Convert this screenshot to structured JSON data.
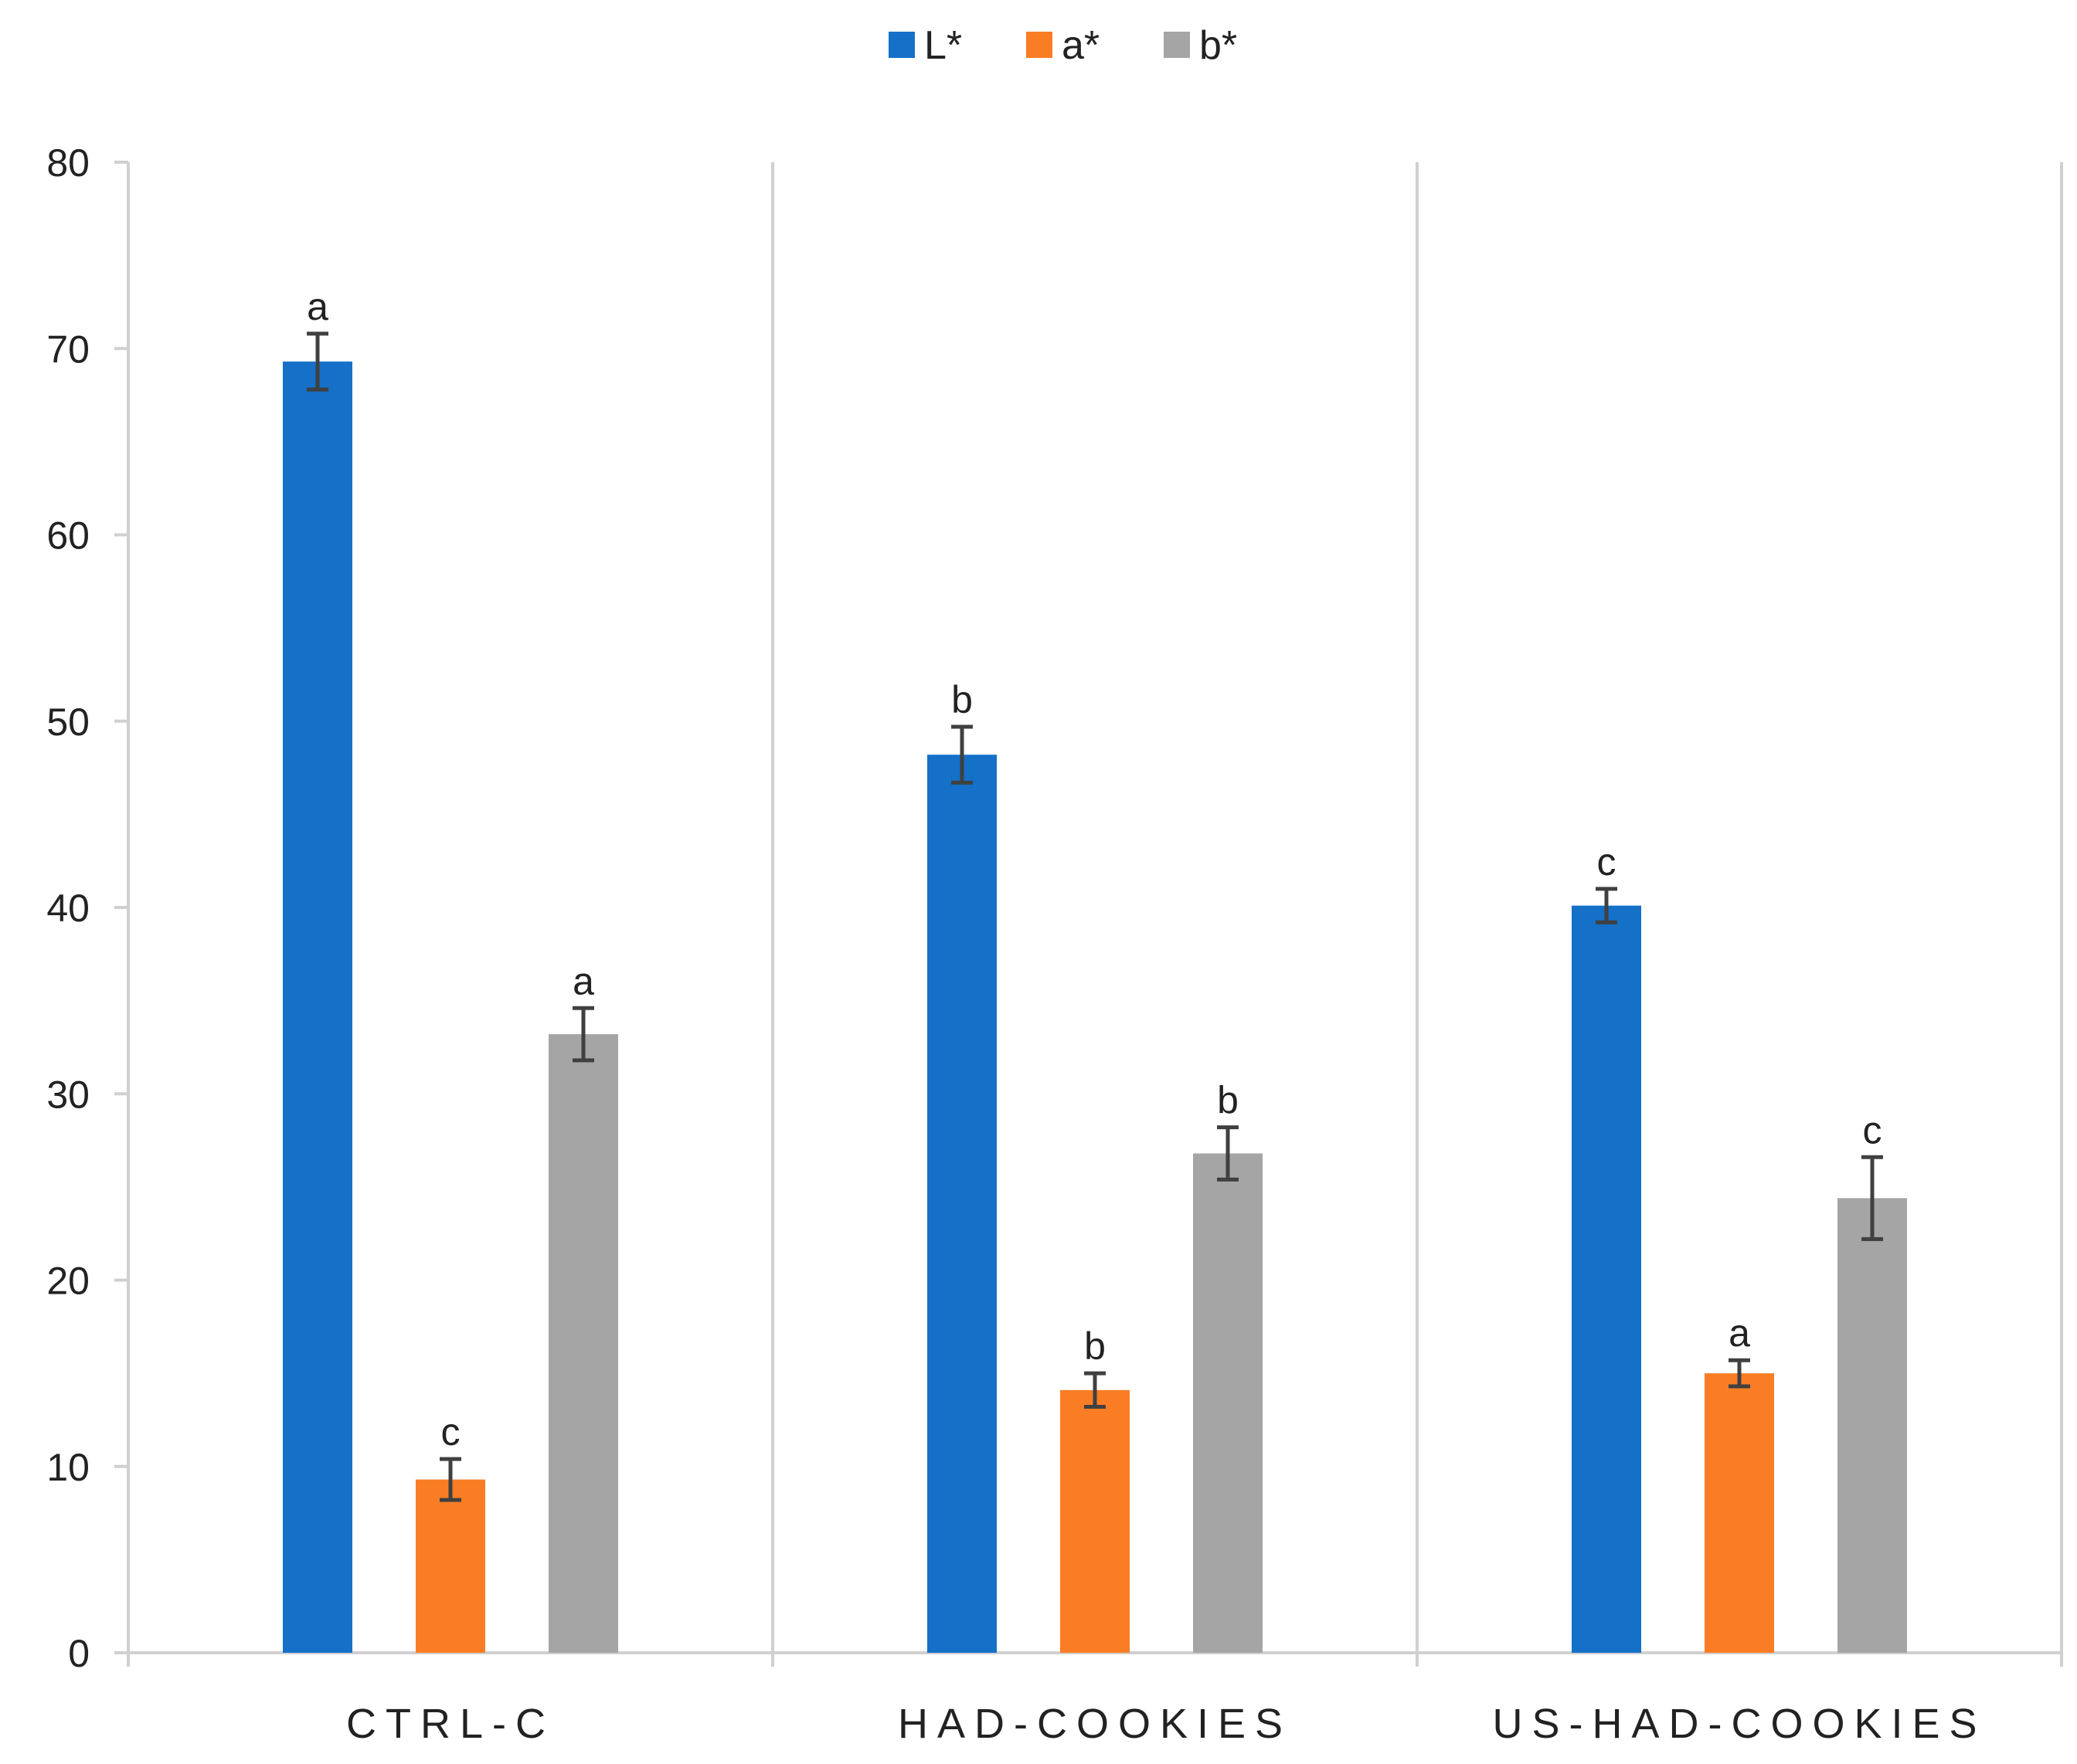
{
  "chart_data": {
    "type": "bar",
    "title": "",
    "xlabel": "",
    "ylabel": "",
    "ylim": [
      0,
      80
    ],
    "yticks": [
      0,
      10,
      20,
      30,
      40,
      50,
      60,
      70,
      80
    ],
    "categories": [
      "CTRL-C",
      "HAD-COOKIES",
      "US-HAD-COOKIES"
    ],
    "legend_position": "top-center",
    "grid": "vertical category separators only",
    "error_bar_color": "#404040",
    "series": [
      {
        "name": "L*",
        "color": "#1570C8",
        "values": [
          69.3,
          48.2,
          40.1
        ],
        "errors": [
          1.5,
          1.5,
          0.9
        ],
        "labels": [
          "a",
          "b",
          "c"
        ]
      },
      {
        "name": "a*",
        "color": "#FA7D26",
        "values": [
          9.3,
          14.1,
          15.0
        ],
        "errors": [
          1.1,
          0.9,
          0.7
        ],
        "labels": [
          "c",
          "b",
          "a"
        ]
      },
      {
        "name": "b*",
        "color": "#A5A5A5",
        "values": [
          33.2,
          26.8,
          24.4
        ],
        "errors": [
          1.4,
          1.4,
          2.2
        ],
        "labels": [
          "a",
          "b",
          "c"
        ]
      }
    ]
  }
}
